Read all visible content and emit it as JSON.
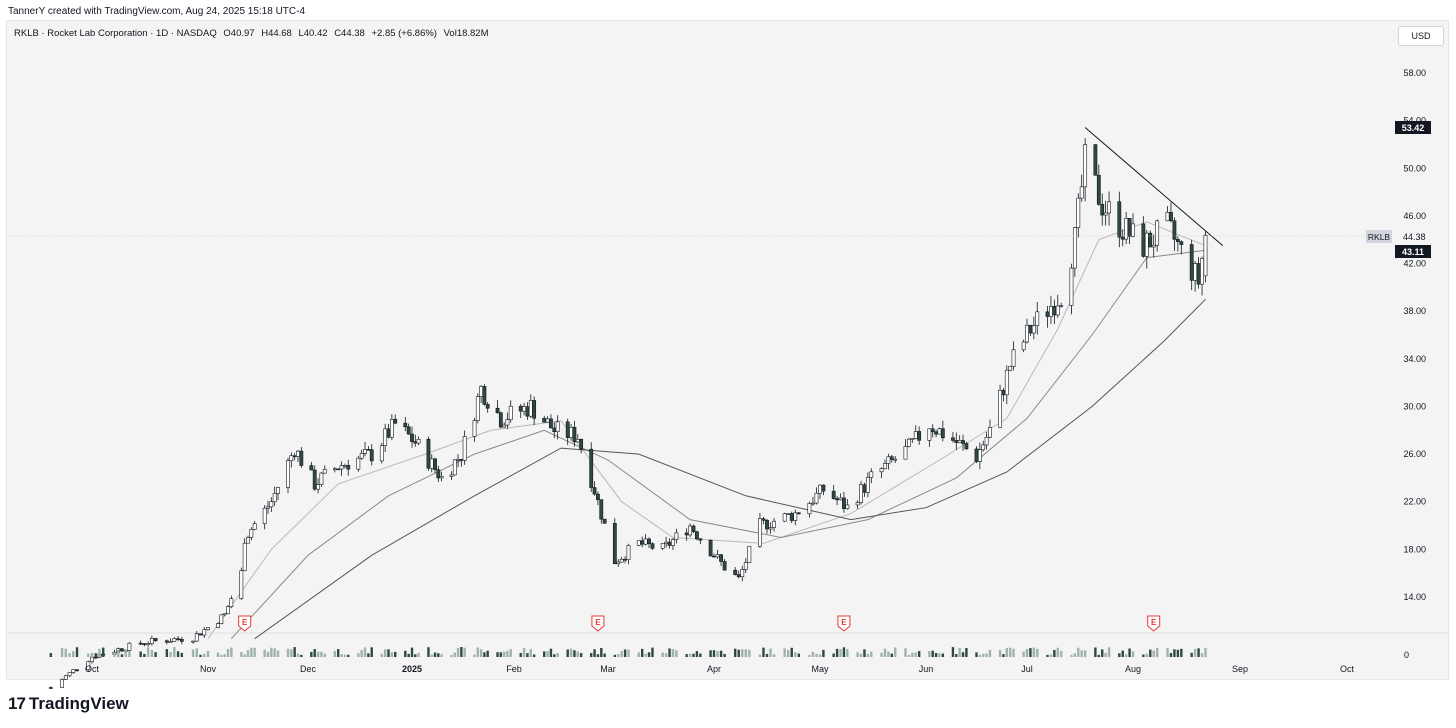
{
  "header": {
    "credit": "TannerY created with TradingView.com, Aug 24, 2025 15:18 UTC-4"
  },
  "legend": {
    "symbol": "RKLB · Rocket Lab Corporation · 1D · NASDAQ",
    "open": "O40.97",
    "high": "H44.68",
    "low": "L40.42",
    "close": "C44.38",
    "change": "+2.85 (+6.86%)",
    "volume": "Vol18.82M"
  },
  "currency_button": "USD",
  "price_labels": {
    "high_marker": "53.42",
    "last_price_tag": "RKLB",
    "last_price": "44.38",
    "ma_value": "43.11"
  },
  "volume_axis_label": "0",
  "footer": {
    "brand": "TradingView",
    "logo": "17"
  },
  "colors": {
    "up": "#ffffff",
    "down": "#2e4a3f",
    "wick": "#131722",
    "ma_fast": "#b9b9b9",
    "ma_mid": "#8a8a8a",
    "ma_slow": "#555555",
    "earnings": "#e53935",
    "background": "#f4f4f4"
  },
  "chart_data": {
    "type": "candlestick",
    "symbol": "RKLB",
    "timeframe": "1D",
    "y_ticks": [
      "58.00",
      "54.00",
      "50.00",
      "46.00",
      "42.00",
      "38.00",
      "34.00",
      "30.00",
      "26.00",
      "22.00",
      "18.00",
      "14.00"
    ],
    "ylim": [
      10,
      60
    ],
    "x_ticks": [
      "Oct",
      "Nov",
      "Dec",
      "2025",
      "Feb",
      "Mar",
      "Apr",
      "May",
      "Jun",
      "Jul",
      "Aug",
      "Sep",
      "Oct"
    ],
    "earnings_markers": [
      "Nov",
      "Feb",
      "May",
      "Aug"
    ],
    "earnings_label": "E",
    "ohlc_anchors": [
      {
        "d": "2024-09-20",
        "c": 6.4
      },
      {
        "d": "2024-10-01",
        "c": 9.0
      },
      {
        "d": "2024-10-15",
        "c": 10.2
      },
      {
        "d": "2024-10-28",
        "c": 10.6
      },
      {
        "d": "2024-11-06",
        "c": 12.5
      },
      {
        "d": "2024-11-11",
        "c": 16.0
      },
      {
        "d": "2024-11-12",
        "c": 19.0
      },
      {
        "d": "2024-11-20",
        "c": 22.0
      },
      {
        "d": "2024-11-27",
        "c": 26.5
      },
      {
        "d": "2024-12-03",
        "c": 23.5
      },
      {
        "d": "2024-12-10",
        "c": 25.0
      },
      {
        "d": "2024-12-20",
        "c": 26.0
      },
      {
        "d": "2024-12-27",
        "c": 28.5
      },
      {
        "d": "2025-01-02",
        "c": 27.0
      },
      {
        "d": "2025-01-10",
        "c": 24.0
      },
      {
        "d": "2025-01-16",
        "c": 26.0
      },
      {
        "d": "2025-01-22",
        "c": 31.5
      },
      {
        "d": "2025-01-28",
        "c": 29.0
      },
      {
        "d": "2025-02-06",
        "c": 30.0
      },
      {
        "d": "2025-02-13",
        "c": 28.0
      },
      {
        "d": "2025-02-20",
        "c": 27.5
      },
      {
        "d": "2025-02-25",
        "c": 23.0
      },
      {
        "d": "2025-03-03",
        "c": 17.0
      },
      {
        "d": "2025-03-10",
        "c": 18.5
      },
      {
        "d": "2025-03-17",
        "c": 18.0
      },
      {
        "d": "2025-03-25",
        "c": 20.0
      },
      {
        "d": "2025-04-04",
        "c": 16.5
      },
      {
        "d": "2025-04-08",
        "c": 15.5
      },
      {
        "d": "2025-04-14",
        "c": 20.0
      },
      {
        "d": "2025-04-24",
        "c": 21.0
      },
      {
        "d": "2025-05-02",
        "c": 23.0
      },
      {
        "d": "2025-05-09",
        "c": 21.5
      },
      {
        "d": "2025-05-16",
        "c": 24.0
      },
      {
        "d": "2025-05-27",
        "c": 26.5
      },
      {
        "d": "2025-06-02",
        "c": 28.5
      },
      {
        "d": "2025-06-10",
        "c": 27.0
      },
      {
        "d": "2025-06-16",
        "c": 25.8
      },
      {
        "d": "2025-06-20",
        "c": 28.0
      },
      {
        "d": "2025-06-26",
        "c": 33.5
      },
      {
        "d": "2025-07-02",
        "c": 36.5
      },
      {
        "d": "2025-07-08",
        "c": 38.5
      },
      {
        "d": "2025-07-11",
        "c": 39.5
      },
      {
        "d": "2025-07-15",
        "c": 44.0
      },
      {
        "d": "2025-07-18",
        "c": 50.5
      },
      {
        "d": "2025-07-23",
        "c": 47.0
      },
      {
        "d": "2025-07-29",
        "c": 45.0
      },
      {
        "d": "2025-08-04",
        "c": 43.5
      },
      {
        "d": "2025-08-11",
        "c": 45.0
      },
      {
        "d": "2025-08-15",
        "c": 43.0
      },
      {
        "d": "2025-08-20",
        "c": 40.5
      },
      {
        "d": "2025-08-22",
        "c": 44.38
      }
    ],
    "last_bar": {
      "open": 40.97,
      "high": 44.68,
      "low": 40.42,
      "close": 44.38,
      "volume": "18.82M"
    },
    "moving_averages": [
      {
        "points": [
          {
            "d": "2024-11-01",
            "v": 10.5
          },
          {
            "d": "2024-11-20",
            "v": 18.0
          },
          {
            "d": "2024-12-10",
            "v": 23.5
          },
          {
            "d": "2025-01-05",
            "v": 26.0
          },
          {
            "d": "2025-01-25",
            "v": 28.0
          },
          {
            "d": "2025-02-15",
            "v": 28.8
          },
          {
            "d": "2025-03-05",
            "v": 22.0
          },
          {
            "d": "2025-03-20",
            "v": 19.0
          },
          {
            "d": "2025-04-15",
            "v": 18.5
          },
          {
            "d": "2025-05-10",
            "v": 21.0
          },
          {
            "d": "2025-06-05",
            "v": 25.5
          },
          {
            "d": "2025-06-25",
            "v": 29.0
          },
          {
            "d": "2025-07-10",
            "v": 36.5
          },
          {
            "d": "2025-07-22",
            "v": 44.0
          },
          {
            "d": "2025-08-05",
            "v": 45.5
          },
          {
            "d": "2025-08-22",
            "v": 43.5
          }
        ]
      },
      {
        "points": [
          {
            "d": "2024-11-08",
            "v": 10.5
          },
          {
            "d": "2024-12-01",
            "v": 17.5
          },
          {
            "d": "2024-12-25",
            "v": 22.5
          },
          {
            "d": "2025-01-20",
            "v": 26.0
          },
          {
            "d": "2025-02-10",
            "v": 28.0
          },
          {
            "d": "2025-03-01",
            "v": 25.5
          },
          {
            "d": "2025-03-25",
            "v": 20.5
          },
          {
            "d": "2025-04-20",
            "v": 19.0
          },
          {
            "d": "2025-05-15",
            "v": 20.5
          },
          {
            "d": "2025-06-10",
            "v": 24.0
          },
          {
            "d": "2025-07-01",
            "v": 29.0
          },
          {
            "d": "2025-07-20",
            "v": 36.0
          },
          {
            "d": "2025-08-05",
            "v": 42.5
          },
          {
            "d": "2025-08-22",
            "v": 43.11
          }
        ]
      },
      {
        "points": [
          {
            "d": "2024-11-15",
            "v": 10.5
          },
          {
            "d": "2024-12-20",
            "v": 17.5
          },
          {
            "d": "2025-01-20",
            "v": 22.5
          },
          {
            "d": "2025-02-15",
            "v": 26.5
          },
          {
            "d": "2025-03-10",
            "v": 26.0
          },
          {
            "d": "2025-04-10",
            "v": 22.5
          },
          {
            "d": "2025-05-10",
            "v": 20.5
          },
          {
            "d": "2025-06-01",
            "v": 21.5
          },
          {
            "d": "2025-06-25",
            "v": 24.5
          },
          {
            "d": "2025-07-20",
            "v": 30.0
          },
          {
            "d": "2025-08-10",
            "v": 35.5
          },
          {
            "d": "2025-08-22",
            "v": 39.0
          }
        ]
      }
    ],
    "trendline": [
      {
        "d": "2025-07-18",
        "v": 53.42
      },
      {
        "d": "2025-08-27",
        "v": 43.5
      }
    ]
  }
}
